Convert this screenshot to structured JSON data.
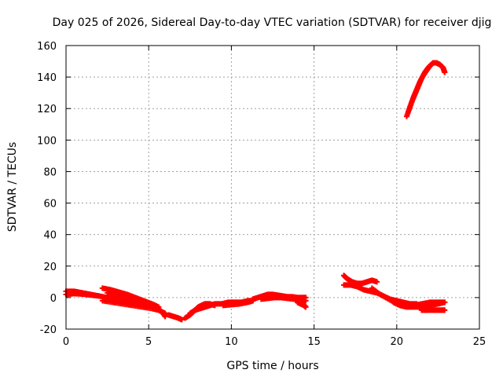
{
  "chart_data": {
    "type": "scatter",
    "title": "Day 025 of 2026, Sidereal Day-to-day VTEC variation (SDTVAR) for receiver djig",
    "xlabel": "GPS time / hours",
    "ylabel": "SDTVAR / TECUs",
    "xlim": [
      0,
      25
    ],
    "ylim": [
      -20,
      160
    ],
    "xticks": [
      0,
      5,
      10,
      15,
      20,
      25
    ],
    "yticks": [
      -20,
      0,
      20,
      40,
      60,
      80,
      100,
      120,
      140,
      160
    ],
    "grid": true,
    "marker": "plus",
    "colors": {
      "series": "#ff0000",
      "grid": "#a0a0a0",
      "axis": "#000000"
    },
    "series": [
      {
        "tracks": [
          {
            "x": [
              0.0,
              0.5,
              1.0,
              1.5,
              2.0,
              2.5,
              3.0,
              3.5,
              4.0,
              4.5,
              5.0,
              5.5,
              5.8,
              6.0
            ],
            "y": [
              4,
              4,
              3,
              2,
              1,
              0,
              -1,
              -2,
              -3,
              -4,
              -5,
              -7,
              -9,
              -12
            ]
          },
          {
            "x": [
              0.0,
              0.5,
              1.0,
              1.5,
              2.0
            ],
            "y": [
              2,
              2.5,
              2.2,
              1.6,
              1
            ]
          },
          {
            "x": [
              2.2,
              2.7,
              3.2,
              3.7,
              4.2,
              4.7,
              5.2,
              5.6
            ],
            "y": [
              6,
              5,
              3.5,
              2,
              0,
              -2,
              -4,
              -6
            ]
          },
          {
            "x": [
              2.2,
              2.8,
              3.4,
              4.0,
              4.6,
              5.2,
              5.6,
              6.0
            ],
            "y": [
              -2,
              -3,
              -4,
              -5,
              -6,
              -7,
              -8,
              -10
            ]
          },
          {
            "x": [
              2.5,
              3.0,
              3.5,
              4.0,
              4.5,
              5.0,
              5.4
            ],
            "y": [
              3,
              2,
              1,
              -0.5,
              -2,
              -3.5,
              -5
            ]
          },
          {
            "x": [
              6.2,
              6.5,
              6.8,
              7.0
            ],
            "y": [
              -11,
              -12,
              -13,
              -14
            ]
          },
          {
            "x": [
              7.2,
              7.5,
              7.8,
              8.0,
              8.2,
              8.4,
              8.7,
              9.0
            ],
            "y": [
              -13,
              -11,
              -8,
              -6,
              -5,
              -4,
              -4,
              -5
            ]
          },
          {
            "x": [
              7.5,
              7.8,
              8.1,
              8.4,
              8.7,
              9.0,
              9.4,
              9.8,
              10.2,
              10.6,
              11.0,
              11.3
            ],
            "y": [
              -10,
              -8,
              -7,
              -6,
              -5,
              -4,
              -4,
              -3,
              -3,
              -3,
              -2,
              -2
            ]
          },
          {
            "x": [
              9.5,
              10.0,
              10.5,
              11.0,
              11.3
            ],
            "y": [
              -5,
              -4.5,
              -4,
              -3,
              -2
            ]
          },
          {
            "x": [
              11.3,
              11.6,
              11.9,
              12.2,
              12.5,
              12.8,
              13.1,
              13.4,
              13.7,
              14.0,
              14.3,
              14.5
            ],
            "y": [
              -1,
              0,
              1,
              2,
              2,
              1.5,
              1,
              0.5,
              0.5,
              0,
              0,
              0
            ]
          },
          {
            "x": [
              11.8,
              12.2,
              12.6,
              13.0,
              13.4,
              13.8,
              14.2,
              14.5
            ],
            "y": [
              -1,
              -0.5,
              0,
              0,
              -0.5,
              -1,
              -1.5,
              -2
            ]
          },
          {
            "x": [
              14.0,
              14.2,
              14.4,
              14.5
            ],
            "y": [
              -3,
              -4,
              -5,
              -6
            ]
          },
          {
            "x": [
              16.8,
              17.0,
              17.3,
              17.6,
              17.9,
              18.2,
              18.5,
              18.8
            ],
            "y": [
              14,
              12,
              10,
              9,
              9,
              10,
              11,
              10
            ]
          },
          {
            "x": [
              16.8,
              17.2,
              17.6,
              18.0,
              18.4,
              18.8,
              19.2,
              19.6,
              20.0,
              20.4,
              20.8,
              21.2
            ],
            "y": [
              8,
              8,
              7,
              5,
              4,
              3,
              1,
              -1,
              -2,
              -3,
              -4,
              -4
            ]
          },
          {
            "x": [
              18.5,
              19.0,
              19.5,
              20.0,
              20.5,
              21.0,
              21.5,
              22.0,
              22.5,
              22.9
            ],
            "y": [
              6,
              2,
              -1,
              -4,
              -5,
              -5,
              -4,
              -3,
              -3,
              -3
            ]
          },
          {
            "x": [
              19.8,
              20.2,
              20.6,
              21.0,
              21.5,
              22.0,
              22.5,
              22.9
            ],
            "y": [
              -3,
              -5,
              -6,
              -6,
              -6,
              -5,
              -4,
              -3
            ]
          },
          {
            "x": [
              21.5,
              21.8,
              22.1,
              22.4,
              22.7,
              22.9
            ],
            "y": [
              -8,
              -8,
              -8,
              -8,
              -8,
              -8
            ]
          },
          {
            "x": [
              20.6,
              20.8,
              21.0,
              21.2,
              21.4,
              21.6,
              21.8,
              22.0,
              22.2,
              22.4,
              22.6,
              22.8,
              22.9
            ],
            "y": [
              115,
              121,
              127,
              132,
              137,
              141,
              144,
              147,
              149,
              149,
              148,
              146,
              143
            ]
          },
          {
            "x": [
              20.7,
              20.9,
              21.1,
              21.3,
              21.5,
              21.7,
              21.9,
              22.1
            ],
            "y": [
              118,
              124,
              129,
              134,
              139,
              143,
              146,
              148
            ]
          }
        ]
      }
    ]
  }
}
